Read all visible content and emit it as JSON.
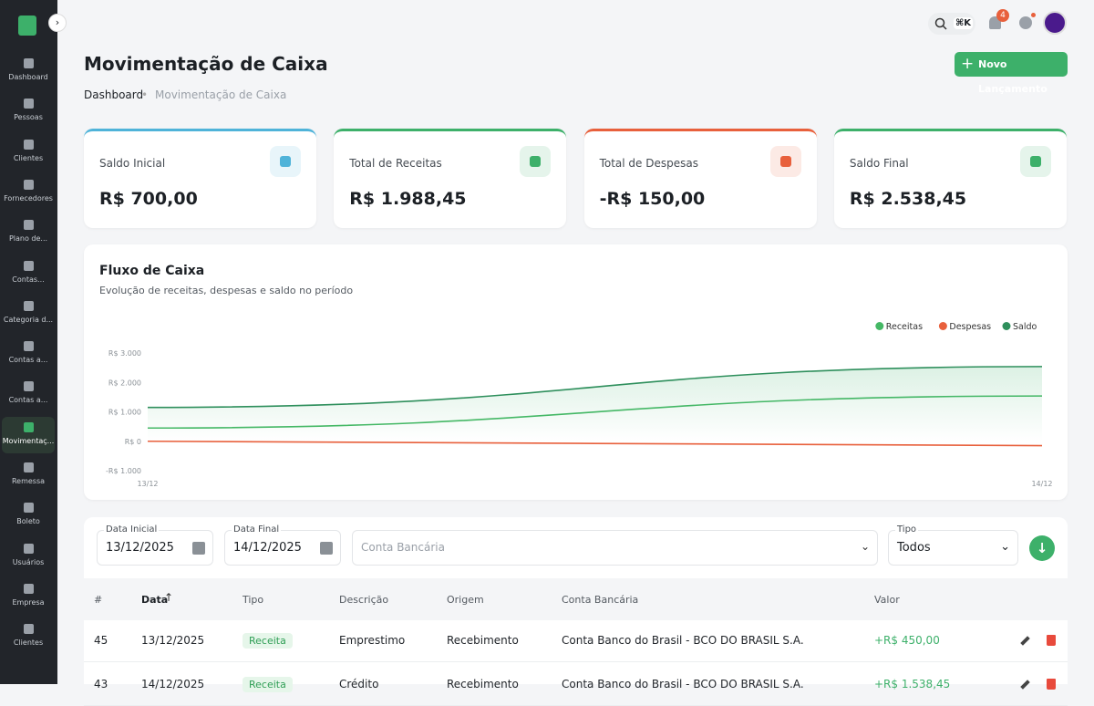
{
  "sidebar": {
    "items": [
      "Dashboard",
      "Pessoas",
      "Clientes",
      "Fornecedores",
      "Plano de...",
      "Contas...",
      "Categoria d...",
      "Contas a...",
      "Contas a...",
      "Movimentaç...",
      "Remessa",
      "Boleto",
      "Usuários",
      "Empresa",
      "Clientes"
    ],
    "active": 9
  },
  "topbar": {
    "shortcut": "⌘K",
    "notifications": "4"
  },
  "header": {
    "title": "Movimentação de Caixa",
    "button": "Novo Lançamento",
    "breadcrumb": [
      "Dashboard",
      "Movimentação de Caixa"
    ]
  },
  "cards": [
    {
      "label": "Saldo Inicial",
      "value": "R$ 700,00",
      "color": "#4fb3d9"
    },
    {
      "label": "Total de Receitas",
      "value": "R$ 1.988,45",
      "color": "#3db06a"
    },
    {
      "label": "Total de Despesas",
      "value": "-R$ 150,00",
      "color": "#e8603c"
    },
    {
      "label": "Saldo Final",
      "value": "R$ 2.538,45",
      "color": "#3db06a"
    }
  ],
  "chart_data": {
    "type": "line",
    "title": "Fluxo de Caixa",
    "subtitle": "Evolução de receitas, despesas e saldo no período",
    "x": [
      "13/12",
      "14/12"
    ],
    "series": [
      {
        "name": "Receitas",
        "color": "#45b865",
        "values": [
          450,
          1538.45
        ]
      },
      {
        "name": "Despesas",
        "color": "#e8603c",
        "values": [
          0,
          -150
        ]
      },
      {
        "name": "Saldo",
        "color": "#2e8f5c",
        "values": [
          1150,
          2538.45
        ]
      }
    ],
    "ylim": [
      -1000,
      3000
    ],
    "yticks": [
      {
        "value": 3000,
        "label": "R$ 3.000"
      },
      {
        "value": 2000,
        "label": "R$ 2.000"
      },
      {
        "value": 1000,
        "label": "R$ 1.000"
      },
      {
        "value": 0,
        "label": "R$ 0"
      },
      {
        "value": -1000,
        "label": "-R$ 1.000"
      }
    ],
    "legend": "top-right"
  },
  "filters": {
    "start_label": "Data Inicial",
    "start": "13/12/2025",
    "end_label": "Data Final",
    "end": "14/12/2025",
    "account": "Conta Bancária",
    "type_label": "Tipo",
    "type": "Todos"
  },
  "table": {
    "headers": [
      "#",
      "Data",
      "Tipo",
      "Descrição",
      "Origem",
      "Conta Bancária",
      "Valor"
    ],
    "rows": [
      [
        "45",
        "13/12/2025",
        "Receita",
        "Emprestimo",
        "Recebimento",
        "Conta Banco do Brasil - BCO DO BRASIL S.A.",
        "+R$ 450,00"
      ],
      [
        "43",
        "14/12/2025",
        "Receita",
        "Crédito",
        "Recebimento",
        "Conta Banco do Brasil - BCO DO BRASIL S.A.",
        "+R$ 1.538,45"
      ]
    ]
  }
}
